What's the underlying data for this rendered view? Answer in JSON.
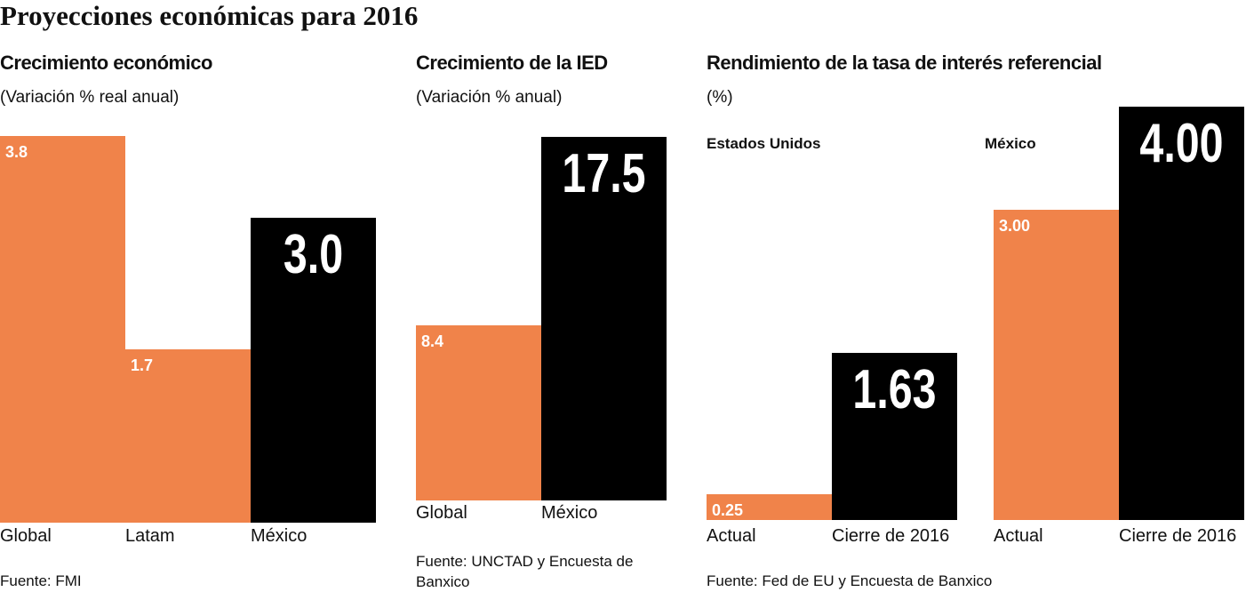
{
  "title": "Proyecciones económicas para 2016",
  "chart_data": [
    {
      "type": "bar",
      "title": "Crecimiento económico",
      "subtitle": "(Variación % real anual)",
      "categories": [
        "Global",
        "Latam",
        "México"
      ],
      "values": [
        3.8,
        1.7,
        3.0
      ],
      "value_labels": [
        "3.8",
        "1.7",
        "3.0"
      ],
      "colors": [
        "#f0834a",
        "#f0834a",
        "#000000"
      ],
      "source": "Fuente: FMI"
    },
    {
      "type": "bar",
      "title": "Crecimiento de la IED",
      "subtitle": "(Variación % anual)",
      "categories": [
        "Global",
        "México"
      ],
      "values": [
        8.4,
        17.5
      ],
      "value_labels": [
        "8.4",
        "17.5"
      ],
      "colors": [
        "#f0834a",
        "#000000"
      ],
      "source": "Fuente: UNCTAD y Encuesta de Banxico"
    },
    {
      "type": "bar",
      "title": "Rendimiento de la tasa de interés referencial",
      "subtitle": "(%)",
      "label": "Estados Unidos",
      "categories": [
        "Actual",
        "Cierre de 2016"
      ],
      "values": [
        0.25,
        1.63
      ],
      "value_labels": [
        "0.25",
        "1.63"
      ],
      "colors": [
        "#f0834a",
        "#000000"
      ],
      "source": "Fuente: Fed de EU y Encuesta de Banxico"
    },
    {
      "type": "bar",
      "label": "México",
      "categories": [
        "Actual",
        "Cierre de 2016"
      ],
      "values": [
        3.0,
        4.0
      ],
      "value_labels": [
        "3.00",
        "4.00"
      ],
      "colors": [
        "#f0834a",
        "#000000"
      ]
    }
  ]
}
